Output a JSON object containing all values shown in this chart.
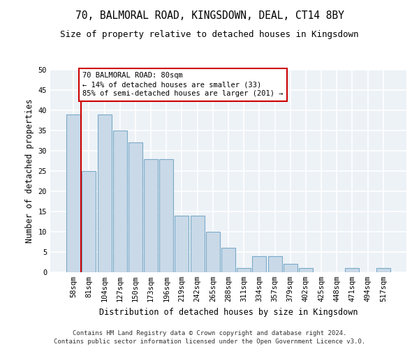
{
  "title1": "70, BALMORAL ROAD, KINGSDOWN, DEAL, CT14 8BY",
  "title2": "Size of property relative to detached houses in Kingsdown",
  "xlabel": "Distribution of detached houses by size in Kingsdown",
  "ylabel": "Number of detached properties",
  "bar_color": "#c9d9e8",
  "bar_edge_color": "#7aaac8",
  "annotation_line_color": "#cc0000",
  "annotation_box_color": "#cc0000",
  "annotation_text": "70 BALMORAL ROAD: 80sqm\n← 14% of detached houses are smaller (33)\n85% of semi-detached houses are larger (201) →",
  "categories": [
    "58sqm",
    "81sqm",
    "104sqm",
    "127sqm",
    "150sqm",
    "173sqm",
    "196sqm",
    "219sqm",
    "242sqm",
    "265sqm",
    "288sqm",
    "311sqm",
    "334sqm",
    "357sqm",
    "379sqm",
    "402sqm",
    "425sqm",
    "448sqm",
    "471sqm",
    "494sqm",
    "517sqm"
  ],
  "values": [
    39,
    25,
    39,
    35,
    32,
    28,
    28,
    14,
    14,
    10,
    6,
    1,
    4,
    4,
    2,
    1,
    0,
    0,
    1,
    0,
    1
  ],
  "ylim": [
    0,
    50
  ],
  "yticks": [
    0,
    5,
    10,
    15,
    20,
    25,
    30,
    35,
    40,
    45,
    50
  ],
  "footer1": "Contains HM Land Registry data © Crown copyright and database right 2024.",
  "footer2": "Contains public sector information licensed under the Open Government Licence v3.0.",
  "background_color": "#edf2f7",
  "grid_color": "#ffffff",
  "fig_background": "#ffffff",
  "title1_fontsize": 10.5,
  "title2_fontsize": 9,
  "axis_label_fontsize": 8.5,
  "tick_fontsize": 7.5,
  "footer_fontsize": 6.5,
  "annot_fontsize": 7.5
}
